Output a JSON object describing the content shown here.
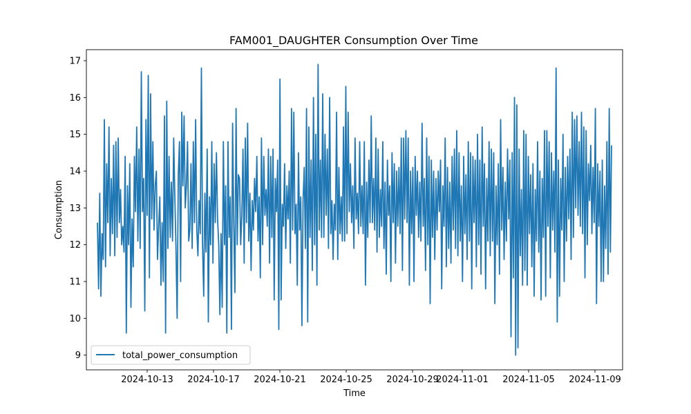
{
  "chart_data": {
    "type": "line",
    "title": "FAM001_DAUGHTER Consumption Over Time",
    "xlabel": "Time",
    "ylabel": "Consumption",
    "xlim": [
      "2024-10-09T08:00",
      "2024-11-10T16:00"
    ],
    "ylim": [
      8.6,
      17.3
    ],
    "x_ticks": [
      "2024-10-13",
      "2024-10-17",
      "2024-10-21",
      "2024-10-25",
      "2024-10-29",
      "2024-11-01",
      "2024-11-05",
      "2024-11-09"
    ],
    "y_ticks": [
      9,
      10,
      11,
      12,
      13,
      14,
      15,
      16,
      17
    ],
    "grid": false,
    "legend": "lower-left",
    "x_start": "2024-10-10T00:00",
    "x_end": "2024-11-10T00:00",
    "series": [
      {
        "name": "total_power_consumption",
        "color": "#1f77b4",
        "values": [
          12.6,
          10.8,
          13.4,
          10.6,
          12.3,
          11.6,
          15.4,
          11.4,
          14.2,
          12.6,
          15.2,
          11.7,
          13.8,
          12.3,
          14.7,
          11.7,
          14.8,
          12.2,
          14.9,
          12.6,
          13.5,
          12.0,
          12.5,
          11.8,
          14.4,
          9.6,
          13.6,
          12.0,
          14.2,
          10.3,
          12.7,
          11.4,
          14.4,
          12.9,
          15.2,
          12.1,
          14.6,
          11.9,
          16.7,
          12.9,
          13.8,
          10.2,
          15.4,
          12.8,
          16.6,
          11.1,
          16.1,
          12.7,
          14.8,
          12.4,
          13.6,
          14.0,
          11.6,
          12.5,
          13.3,
          10.9,
          12.6,
          11.0,
          15.5,
          9.6,
          15.9,
          11.9,
          14.4,
          12.2,
          13.7,
          12.1,
          14.9,
          13.3,
          11.9,
          10.0,
          13.9,
          14.8,
          11.0,
          15.6,
          13.6,
          15.5,
          13.0,
          13.6,
          14.8,
          12.1,
          12.4,
          14.2,
          11.9,
          14.8,
          12.6,
          15.4,
          12.4,
          11.7,
          13.2,
          12.3,
          16.8,
          12.0,
          10.6,
          13.4,
          11.8,
          14.6,
          9.9,
          13.3,
          12.0,
          14.8,
          11.5,
          14.2,
          12.6,
          14.5,
          12.7,
          12.0,
          10.1,
          12.3,
          10.3,
          14.8,
          12.0,
          13.6,
          9.6,
          14.8,
          12.2,
          13.3,
          9.7,
          15.3,
          12.6,
          10.7,
          15.7,
          12.0,
          13.9,
          13.8,
          12.0,
          12.8,
          14.6,
          11.5,
          14.9,
          12.6,
          15.3,
          12.1,
          13.4,
          11.3,
          13.2,
          12.4,
          13.8,
          12.9,
          14.4,
          12.1,
          13.3,
          11.1,
          14.9,
          12.0,
          14.4,
          12.8,
          13.5,
          12.5,
          14.6,
          11.5,
          14.4,
          12.2,
          14.6,
          10.5,
          13.8,
          12.9,
          14.3,
          9.7,
          16.5,
          10.5,
          13.1,
          12.5,
          14.2,
          11.9,
          13.6,
          12.7,
          14.0,
          11.5,
          15.7,
          12.4,
          15.6,
          12.3,
          13.1,
          10.9,
          14.5,
          12.4,
          13.3,
          9.8,
          13.2,
          14.1,
          11.9,
          15.7,
          9.9,
          15.2,
          12.2,
          14.3,
          11.3,
          16.0,
          12.0,
          15.0,
          10.9,
          16.9,
          12.4,
          14.3,
          12.2,
          16.1,
          12.2,
          15.0,
          12.8,
          14.6,
          11.9,
          16.0,
          12.3,
          13.2,
          11.6,
          13.1,
          12.4,
          15.6,
          11.6,
          14.1,
          12.3,
          13.3,
          12.1,
          15.2,
          12.1,
          16.3,
          12.3,
          15.6,
          12.9,
          14.2,
          12.6,
          13.6,
          11.9,
          14.9,
          12.7,
          13.4,
          12.3,
          14.8,
          12.5,
          13.6,
          12.3,
          14.8,
          10.9,
          13.7,
          12.2,
          14.3,
          12.6,
          15.5,
          12.6,
          13.8,
          12.4,
          14.9,
          11.8,
          14.6,
          12.2,
          13.5,
          12.5,
          14.8,
          11.9,
          13.7,
          11.2,
          14.3,
          12.8,
          13.6,
          11.0,
          14.5,
          12.6,
          14.2,
          11.5,
          14.0,
          12.5,
          14.1,
          12.3,
          14.9,
          11.3,
          14.9,
          12.7,
          15.1,
          12.6,
          14.9,
          10.9,
          14.0,
          12.3,
          14.1,
          11.0,
          14.4,
          12.8,
          14.0,
          12.2,
          13.7,
          12.1,
          15.3,
          12.5,
          13.8,
          11.3,
          14.9,
          12.0,
          14.4,
          10.4,
          14.3,
          12.2,
          14.0,
          11.6,
          13.8,
          12.4,
          14.0,
          12.9,
          14.3,
          10.8,
          13.6,
          12.5,
          14.9,
          11.4,
          14.1,
          11.9,
          13.7,
          11.5,
          14.4,
          12.4,
          14.6,
          11.9,
          15.1,
          11.7,
          14.5,
          12.1,
          13.6,
          11.0,
          14.4,
          12.3,
          13.9,
          11.6,
          14.8,
          12.1,
          14.5,
          10.8,
          14.4,
          12.6,
          14.3,
          11.4,
          15.0,
          12.0,
          14.3,
          11.2,
          15.2,
          12.5,
          14.2,
          10.8,
          13.8,
          12.1,
          14.8,
          11.7,
          14.6,
          12.1,
          14.5,
          10.4,
          13.6,
          12.0,
          14.2,
          11.2,
          15.4,
          12.4,
          14.1,
          11.6,
          13.7,
          12.1,
          14.6,
          12.7,
          14.3,
          9.5,
          14.5,
          11.1,
          16.0,
          9.0,
          15.8,
          9.2,
          14.6,
          11.7,
          13.5,
          10.9,
          15.1,
          11.3,
          15.0,
          10.9,
          14.4,
          12.3,
          13.9,
          11.4,
          14.2,
          10.6,
          13.5,
          12.1,
          14.8,
          11.8,
          14.0,
          10.5,
          13.8,
          12.2,
          15.1,
          10.6,
          15.1,
          12.5,
          14.8,
          11.1,
          14.5,
          12.4,
          14.0,
          11.8,
          16.8,
          9.9,
          14.3,
          10.6,
          13.8,
          12.4,
          15.0,
          11.0,
          14.1,
          12.1,
          14.4,
          12.7,
          14.6,
          11.6,
          15.6,
          12.2,
          15.4,
          13.0,
          15.5,
          12.8,
          14.8,
          12.5,
          15.6,
          12.3,
          15.2,
          11.1,
          15.1,
          12.0,
          14.2,
          13.2,
          14.7,
          12.3,
          14.1,
          12.6,
          15.7,
          10.4,
          14.2,
          12.5,
          14.0,
          11.0,
          14.3,
          11.0,
          13.6,
          11.9,
          14.8,
          11.2,
          15.7,
          11.8,
          14.7
        ]
      }
    ]
  }
}
